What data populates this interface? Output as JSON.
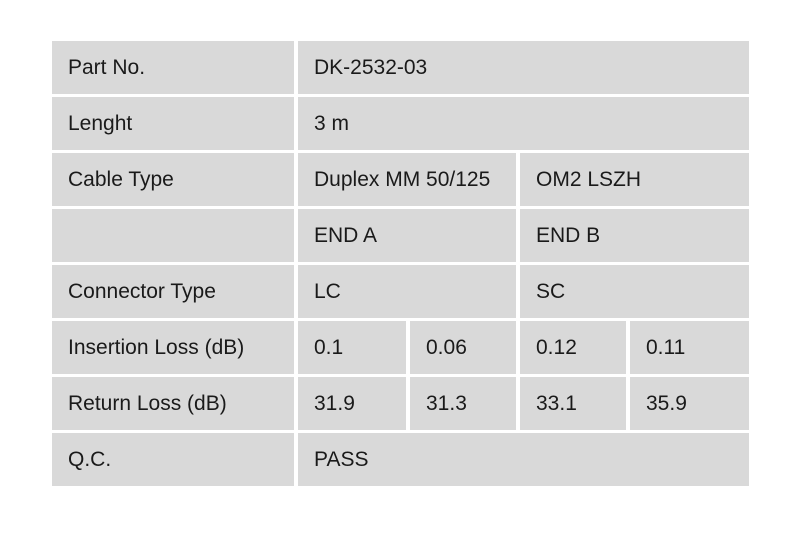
{
  "colors": {
    "page_background": "#ffffff",
    "cell_background": "#d9d9d9",
    "text": "#1a1a1a"
  },
  "table": {
    "rows": {
      "part_no": {
        "label": "Part No.",
        "value": "DK-2532-03"
      },
      "length": {
        "label": "Lenght",
        "value": "3 m"
      },
      "cable_type": {
        "label": "Cable Type",
        "value_a": "Duplex MM 50/125",
        "value_b": "OM2 LSZH"
      },
      "ends": {
        "label": "",
        "value_a": "END A",
        "value_b": "END B"
      },
      "connector_type": {
        "label": "Connector Type",
        "value_a": "LC",
        "value_b": "SC"
      },
      "insertion_loss": {
        "label": "Insertion Loss (dB)",
        "values": [
          "0.1",
          "0.06",
          "0.12",
          "0.11"
        ]
      },
      "return_loss": {
        "label": "Return Loss (dB)",
        "values": [
          "31.9",
          "31.3",
          "33.1",
          "35.9"
        ]
      },
      "qc": {
        "label": "Q.C.",
        "value": "PASS"
      }
    }
  }
}
